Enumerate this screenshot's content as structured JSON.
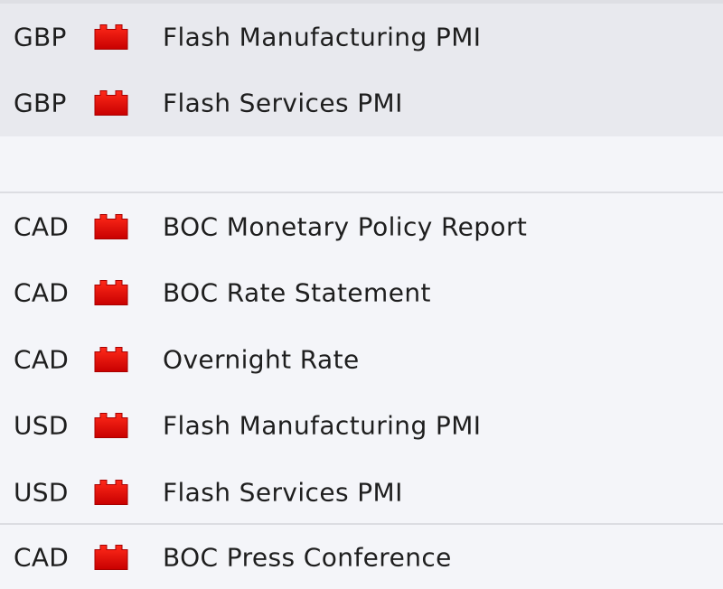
{
  "impact_color": "#e30000",
  "impact_icon": "high-impact-icon",
  "groups": [
    {
      "rows": [
        {
          "currency": "GBP",
          "event": "Flash Manufacturing PMI"
        },
        {
          "currency": "GBP",
          "event": "Flash Services PMI"
        }
      ]
    },
    {
      "rows": [
        {
          "currency": "CAD",
          "event": "BOC Monetary Policy Report"
        },
        {
          "currency": "CAD",
          "event": "BOC Rate Statement"
        },
        {
          "currency": "CAD",
          "event": "Overnight Rate"
        },
        {
          "currency": "USD",
          "event": "Flash Manufacturing PMI"
        },
        {
          "currency": "USD",
          "event": "Flash Services PMI"
        }
      ]
    },
    {
      "rows": [
        {
          "currency": "CAD",
          "event": "BOC Press Conference"
        }
      ]
    }
  ]
}
